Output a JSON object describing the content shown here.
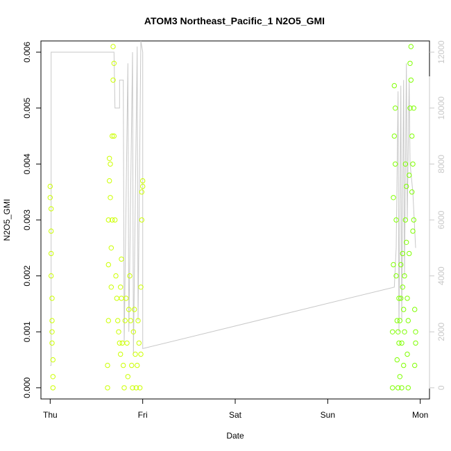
{
  "chart_data": {
    "type": "scatter",
    "title": "ATOM3 Northeast_Pacific_1 N2O5_GMI",
    "xlabel": "Date",
    "ylabel": "N2O5_GMI",
    "x_ticks": [
      "Thu",
      "Fri",
      "Sat",
      "Sun",
      "Mon"
    ],
    "xlim_days": [
      -0.1,
      4.1
    ],
    "ylim": [
      -0.0002,
      0.0062
    ],
    "y_ticks": [
      "0.000",
      "0.001",
      "0.002",
      "0.003",
      "0.004",
      "0.005",
      "0.006"
    ],
    "y2lim": [
      -400,
      12400
    ],
    "y2_ticks": [
      "0",
      "2000",
      "4000",
      "6000",
      "8000",
      "10000",
      "12000"
    ],
    "grid": false,
    "colors": {
      "early_points": "#ccff00",
      "late_points": "#7fff00",
      "secondary_line": "#c8c8c8",
      "axis": "#000000",
      "right_axis": "#c8c8c8"
    },
    "series": [
      {
        "kind": "points",
        "values": [
          [
            0.0,
            0.0036
          ],
          [
            0.0,
            0.0034
          ],
          [
            0.01,
            0.0032
          ],
          [
            0.01,
            0.0028
          ],
          [
            0.01,
            0.0024
          ],
          [
            0.01,
            0.002
          ],
          [
            0.02,
            0.0016
          ],
          [
            0.02,
            0.0012
          ],
          [
            0.02,
            0.001
          ],
          [
            0.02,
            0.0008
          ],
          [
            0.03,
            0.0005
          ],
          [
            0.03,
            0.0002
          ],
          [
            0.03,
            0.0
          ],
          [
            0.62,
            0.0
          ],
          [
            0.62,
            0.0004
          ],
          [
            0.63,
            0.0012
          ],
          [
            0.63,
            0.0022
          ],
          [
            0.63,
            0.003
          ],
          [
            0.64,
            0.0037
          ],
          [
            0.64,
            0.0041
          ],
          [
            0.65,
            0.004
          ],
          [
            0.65,
            0.0034
          ],
          [
            0.66,
            0.0025
          ],
          [
            0.66,
            0.0018
          ],
          [
            0.67,
            0.003
          ],
          [
            0.67,
            0.0045
          ],
          [
            0.68,
            0.0055
          ],
          [
            0.68,
            0.0061
          ],
          [
            0.69,
            0.0058
          ],
          [
            0.69,
            0.0045
          ],
          [
            0.7,
            0.003
          ],
          [
            0.71,
            0.002
          ],
          [
            0.72,
            0.0016
          ],
          [
            0.73,
            0.0012
          ],
          [
            0.74,
            0.001
          ],
          [
            0.75,
            0.0008
          ],
          [
            0.76,
            0.0006
          ],
          [
            0.76,
            0.0018
          ],
          [
            0.77,
            0.0023
          ],
          [
            0.77,
            0.0016
          ],
          [
            0.78,
            0.0008
          ],
          [
            0.79,
            0.0004
          ],
          [
            0.8,
            0.0
          ],
          [
            0.81,
            0.0012
          ],
          [
            0.82,
            0.0016
          ],
          [
            0.83,
            0.0008
          ],
          [
            0.84,
            0.0002
          ],
          [
            0.85,
            0.0014
          ],
          [
            0.86,
            0.002
          ],
          [
            0.87,
            0.0012
          ],
          [
            0.88,
            0.0004
          ],
          [
            0.89,
            0.0
          ],
          [
            0.9,
            0.001
          ],
          [
            0.91,
            0.0014
          ],
          [
            0.92,
            0.0006
          ],
          [
            0.93,
            0.0
          ],
          [
            0.94,
            0.0004
          ],
          [
            0.95,
            0.0012
          ],
          [
            0.96,
            0.0008
          ],
          [
            0.97,
            0.0
          ],
          [
            0.98,
            0.0006
          ],
          [
            0.98,
            0.0018
          ],
          [
            0.99,
            0.003
          ],
          [
            0.99,
            0.0035
          ],
          [
            1.0,
            0.0037
          ],
          [
            1.0,
            0.0036
          ]
        ]
      },
      {
        "kind": "points",
        "values": [
          [
            3.7,
            0.0
          ],
          [
            3.7,
            0.001
          ],
          [
            3.71,
            0.0022
          ],
          [
            3.71,
            0.0034
          ],
          [
            3.72,
            0.0045
          ],
          [
            3.72,
            0.0054
          ],
          [
            3.73,
            0.005
          ],
          [
            3.73,
            0.004
          ],
          [
            3.74,
            0.003
          ],
          [
            3.74,
            0.002
          ],
          [
            3.75,
            0.0012
          ],
          [
            3.75,
            0.0005
          ],
          [
            3.76,
            0.0
          ],
          [
            3.76,
            0.001
          ],
          [
            3.77,
            0.0016
          ],
          [
            3.77,
            0.0008
          ],
          [
            3.78,
            0.0002
          ],
          [
            3.78,
            0.0012
          ],
          [
            3.79,
            0.0022
          ],
          [
            3.79,
            0.0016
          ],
          [
            3.8,
            0.0008
          ],
          [
            3.8,
            0.0
          ],
          [
            3.81,
            0.0018
          ],
          [
            3.81,
            0.0024
          ],
          [
            3.82,
            0.0014
          ],
          [
            3.82,
            0.0004
          ],
          [
            3.83,
            0.001
          ],
          [
            3.83,
            0.002
          ],
          [
            3.84,
            0.003
          ],
          [
            3.84,
            0.004
          ],
          [
            3.85,
            0.0036
          ],
          [
            3.85,
            0.0026
          ],
          [
            3.86,
            0.0016
          ],
          [
            3.86,
            0.0006
          ],
          [
            3.87,
            0.0
          ],
          [
            3.87,
            0.0012
          ],
          [
            3.88,
            0.0024
          ],
          [
            3.88,
            0.0038
          ],
          [
            3.89,
            0.005
          ],
          [
            3.89,
            0.0058
          ],
          [
            3.9,
            0.0061
          ],
          [
            3.9,
            0.0055
          ],
          [
            3.91,
            0.0045
          ],
          [
            3.91,
            0.0035
          ],
          [
            3.92,
            0.0028
          ],
          [
            3.92,
            0.004
          ],
          [
            3.93,
            0.005
          ],
          [
            3.93,
            0.003
          ],
          [
            3.94,
            0.0014
          ],
          [
            3.94,
            0.0004
          ],
          [
            3.95,
            0.001
          ],
          [
            3.95,
            0.0008
          ]
        ]
      },
      {
        "kind": "line",
        "values": [
          [
            0.0,
            800
          ],
          [
            0.01,
            800
          ],
          [
            0.01,
            12000
          ],
          [
            0.3,
            12000
          ],
          [
            0.69,
            12000
          ],
          [
            0.7,
            10000
          ],
          [
            0.75,
            10000
          ],
          [
            0.75,
            11000
          ],
          [
            0.79,
            11000
          ],
          [
            0.8,
            1600
          ],
          [
            0.84,
            11600
          ],
          [
            0.85,
            2000
          ],
          [
            0.89,
            12000
          ],
          [
            0.9,
            1200
          ],
          [
            0.94,
            12200
          ],
          [
            0.95,
            2400
          ],
          [
            0.98,
            12400
          ],
          [
            1.0,
            12000
          ],
          [
            1.0,
            1400
          ],
          [
            3.72,
            3600
          ],
          [
            3.74,
            5000
          ],
          [
            3.76,
            10600
          ],
          [
            3.77,
            2000
          ],
          [
            3.79,
            10800
          ],
          [
            3.8,
            2400
          ],
          [
            3.82,
            11000
          ],
          [
            3.83,
            4000
          ],
          [
            3.85,
            11600
          ],
          [
            3.86,
            6000
          ],
          [
            3.88,
            11000
          ],
          [
            3.89,
            8000
          ],
          [
            3.92,
            7000
          ],
          [
            3.95,
            5000
          ]
        ]
      }
    ]
  }
}
